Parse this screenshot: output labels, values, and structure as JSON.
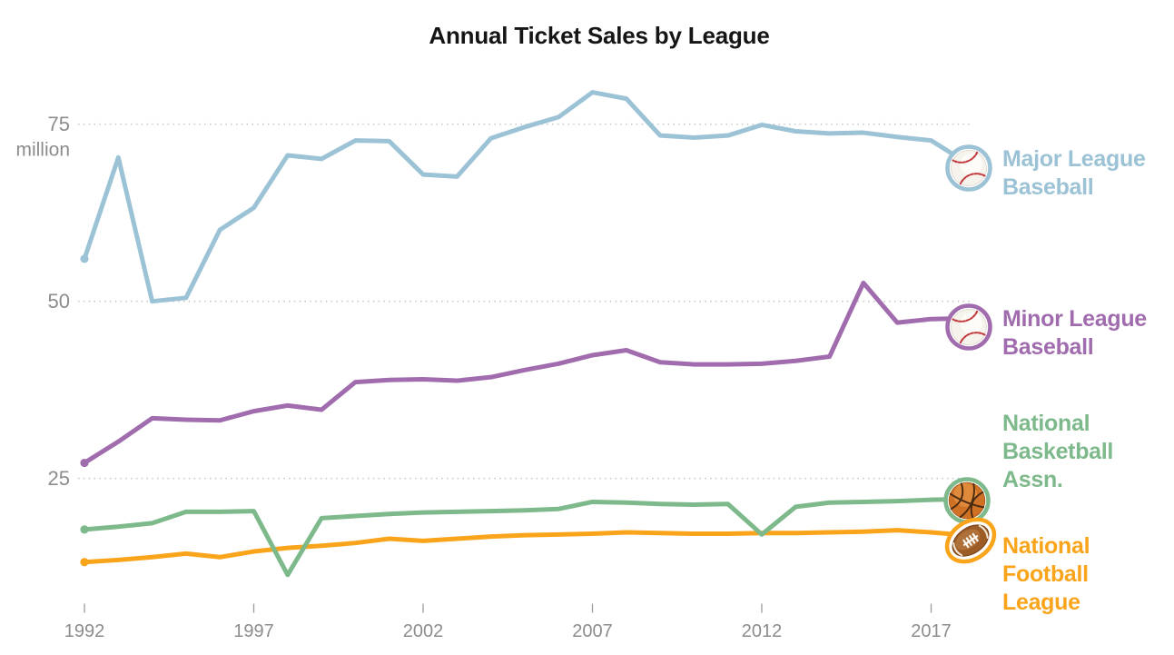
{
  "chart_data": {
    "type": "line",
    "title": "Annual Ticket Sales by League",
    "y_axis": {
      "unit_label": "million",
      "gridline_values": [
        75,
        50,
        25
      ],
      "tick_labels": [
        "75",
        "50",
        "25"
      ],
      "range": [
        0,
        82
      ],
      "grid_style": "dotted"
    },
    "x_axis": {
      "tick_labels": [
        "1992",
        "1997",
        "2002",
        "2007",
        "2012",
        "2017"
      ],
      "tick_years": [
        1992,
        1997,
        2002,
        2007,
        2012,
        2017
      ],
      "range": [
        1992,
        2018
      ],
      "interval_years": 1
    },
    "legend_position": "right",
    "series": [
      {
        "name": "Major League Baseball",
        "legend_lines": [
          "Major League",
          "Baseball"
        ],
        "color": "#9cc2d6",
        "icon": "baseball",
        "start_year": 1992,
        "values": [
          56.0,
          70.3,
          50.0,
          50.5,
          60.1,
          63.2,
          70.6,
          70.1,
          72.7,
          72.6,
          67.9,
          67.6,
          73.0,
          74.6,
          76.0,
          79.5,
          78.6,
          73.4,
          73.1,
          73.4,
          74.9,
          74.0,
          73.7,
          73.8,
          73.2,
          72.7,
          69.7
        ]
      },
      {
        "name": "Minor League Baseball",
        "legend_lines": [
          "Minor League",
          "Baseball"
        ],
        "color": "#a06cae",
        "icon": "baseball",
        "start_year": 1992,
        "values": [
          27.2,
          30.2,
          33.5,
          33.3,
          33.2,
          34.5,
          35.3,
          34.7,
          38.6,
          38.9,
          39.0,
          38.8,
          39.3,
          40.3,
          41.2,
          42.4,
          43.1,
          41.4,
          41.1,
          41.1,
          41.2,
          41.6,
          42.2,
          52.6,
          47.0,
          47.5,
          47.6
        ]
      },
      {
        "name": "National Basketball Assn.",
        "legend_lines": [
          "National",
          "Basketball",
          "Assn."
        ],
        "color": "#7db98b",
        "icon": "basketball",
        "start_year": 1992,
        "values": [
          17.8,
          18.2,
          18.7,
          20.3,
          20.3,
          20.4,
          11.4,
          19.4,
          19.7,
          20.0,
          20.2,
          20.3,
          20.4,
          20.5,
          20.7,
          21.7,
          21.6,
          21.4,
          21.3,
          21.4,
          17.1,
          21.0,
          21.6,
          21.7,
          21.8,
          22.0,
          22.1
        ]
      },
      {
        "name": "National Football League",
        "legend_lines": [
          "National",
          "Football",
          "League"
        ],
        "color": "#f9a41b",
        "icon": "football",
        "start_year": 1992,
        "values": [
          13.2,
          13.5,
          13.9,
          14.4,
          13.9,
          14.7,
          15.2,
          15.5,
          15.9,
          16.5,
          16.2,
          16.5,
          16.8,
          17.0,
          17.1,
          17.2,
          17.4,
          17.3,
          17.2,
          17.2,
          17.3,
          17.3,
          17.4,
          17.5,
          17.7,
          17.4,
          17.0
        ]
      }
    ],
    "colors": {
      "title": "#151515",
      "axis_label": "#8c8c8c",
      "tick_mark": "#9c9c9c",
      "gridline": "#cbcbcb",
      "background": "#ffffff"
    }
  }
}
